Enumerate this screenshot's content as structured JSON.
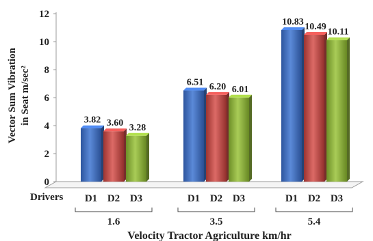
{
  "chart_data": {
    "type": "bar",
    "categories": [
      "1.6",
      "3.5",
      "5.4"
    ],
    "series": [
      {
        "name": "D1",
        "values": [
          3.82,
          6.51,
          10.83
        ],
        "color": "#3f6fc2"
      },
      {
        "name": "D2",
        "values": [
          3.6,
          6.2,
          10.49
        ],
        "color": "#c44d4a"
      },
      {
        "name": "D3",
        "values": [
          3.28,
          6.01,
          10.11
        ],
        "color": "#8eb33e"
      }
    ],
    "data_labels": [
      [
        "3.82",
        "3.60",
        "3.28"
      ],
      [
        "6.51",
        "6.20",
        "6.01"
      ],
      [
        "10.83",
        "10.49",
        "10.11"
      ]
    ],
    "y_ticks": [
      "0",
      "2",
      "4",
      "6",
      "8",
      "10",
      "12"
    ],
    "ylim": [
      0,
      12
    ],
    "ylabel_line1": "Vector Sum Vibration",
    "ylabel_line2": "in Seat m/sec²",
    "xlabel": "Velocity Tractor Agriculture km/hr",
    "drivers_label": "Drivers",
    "style": "3d-columns",
    "grid": false
  }
}
